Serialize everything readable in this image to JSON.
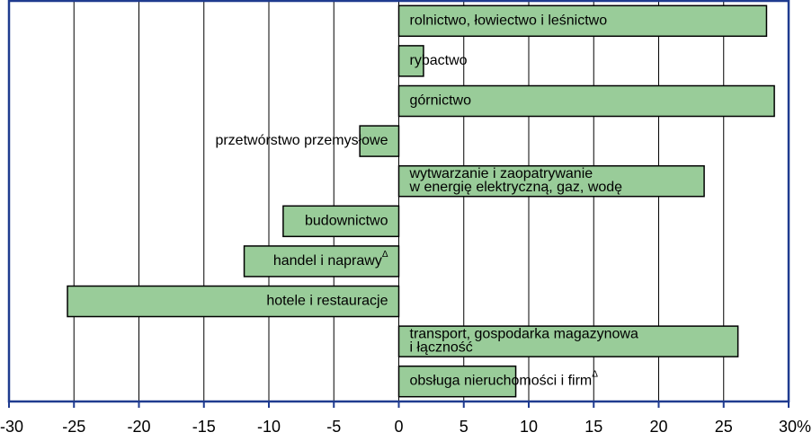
{
  "chart_data": {
    "type": "bar",
    "orientation": "horizontal",
    "categories": [
      "rolnictwo, łowiectwo i leśnictwo",
      "rybactwo",
      "górnictwo",
      "przetwórstwo przemysłowe",
      "wytwarzanie i zaopatrywanie\nw energię elektryczną, gaz, wodę",
      "budownictwo",
      "handel i naprawy",
      "hotele i restauracje",
      "transport, gospodarka magazynowa\ni łączność",
      "obsługa nieruchomości i firm"
    ],
    "category_notes": [
      null,
      null,
      null,
      null,
      null,
      null,
      "Δ",
      null,
      null,
      "Δ"
    ],
    "values": [
      28.3,
      1.9,
      28.9,
      -3.0,
      23.5,
      -8.9,
      -11.9,
      -25.5,
      26.1,
      9.0
    ],
    "color": "#99cc99",
    "xlim": [
      -30,
      30
    ],
    "xticks": [
      -30,
      -25,
      -20,
      -15,
      -10,
      -5,
      0,
      5,
      10,
      15,
      20,
      25,
      {
        "value": 30,
        "label": "30%"
      }
    ],
    "grid": true
  }
}
